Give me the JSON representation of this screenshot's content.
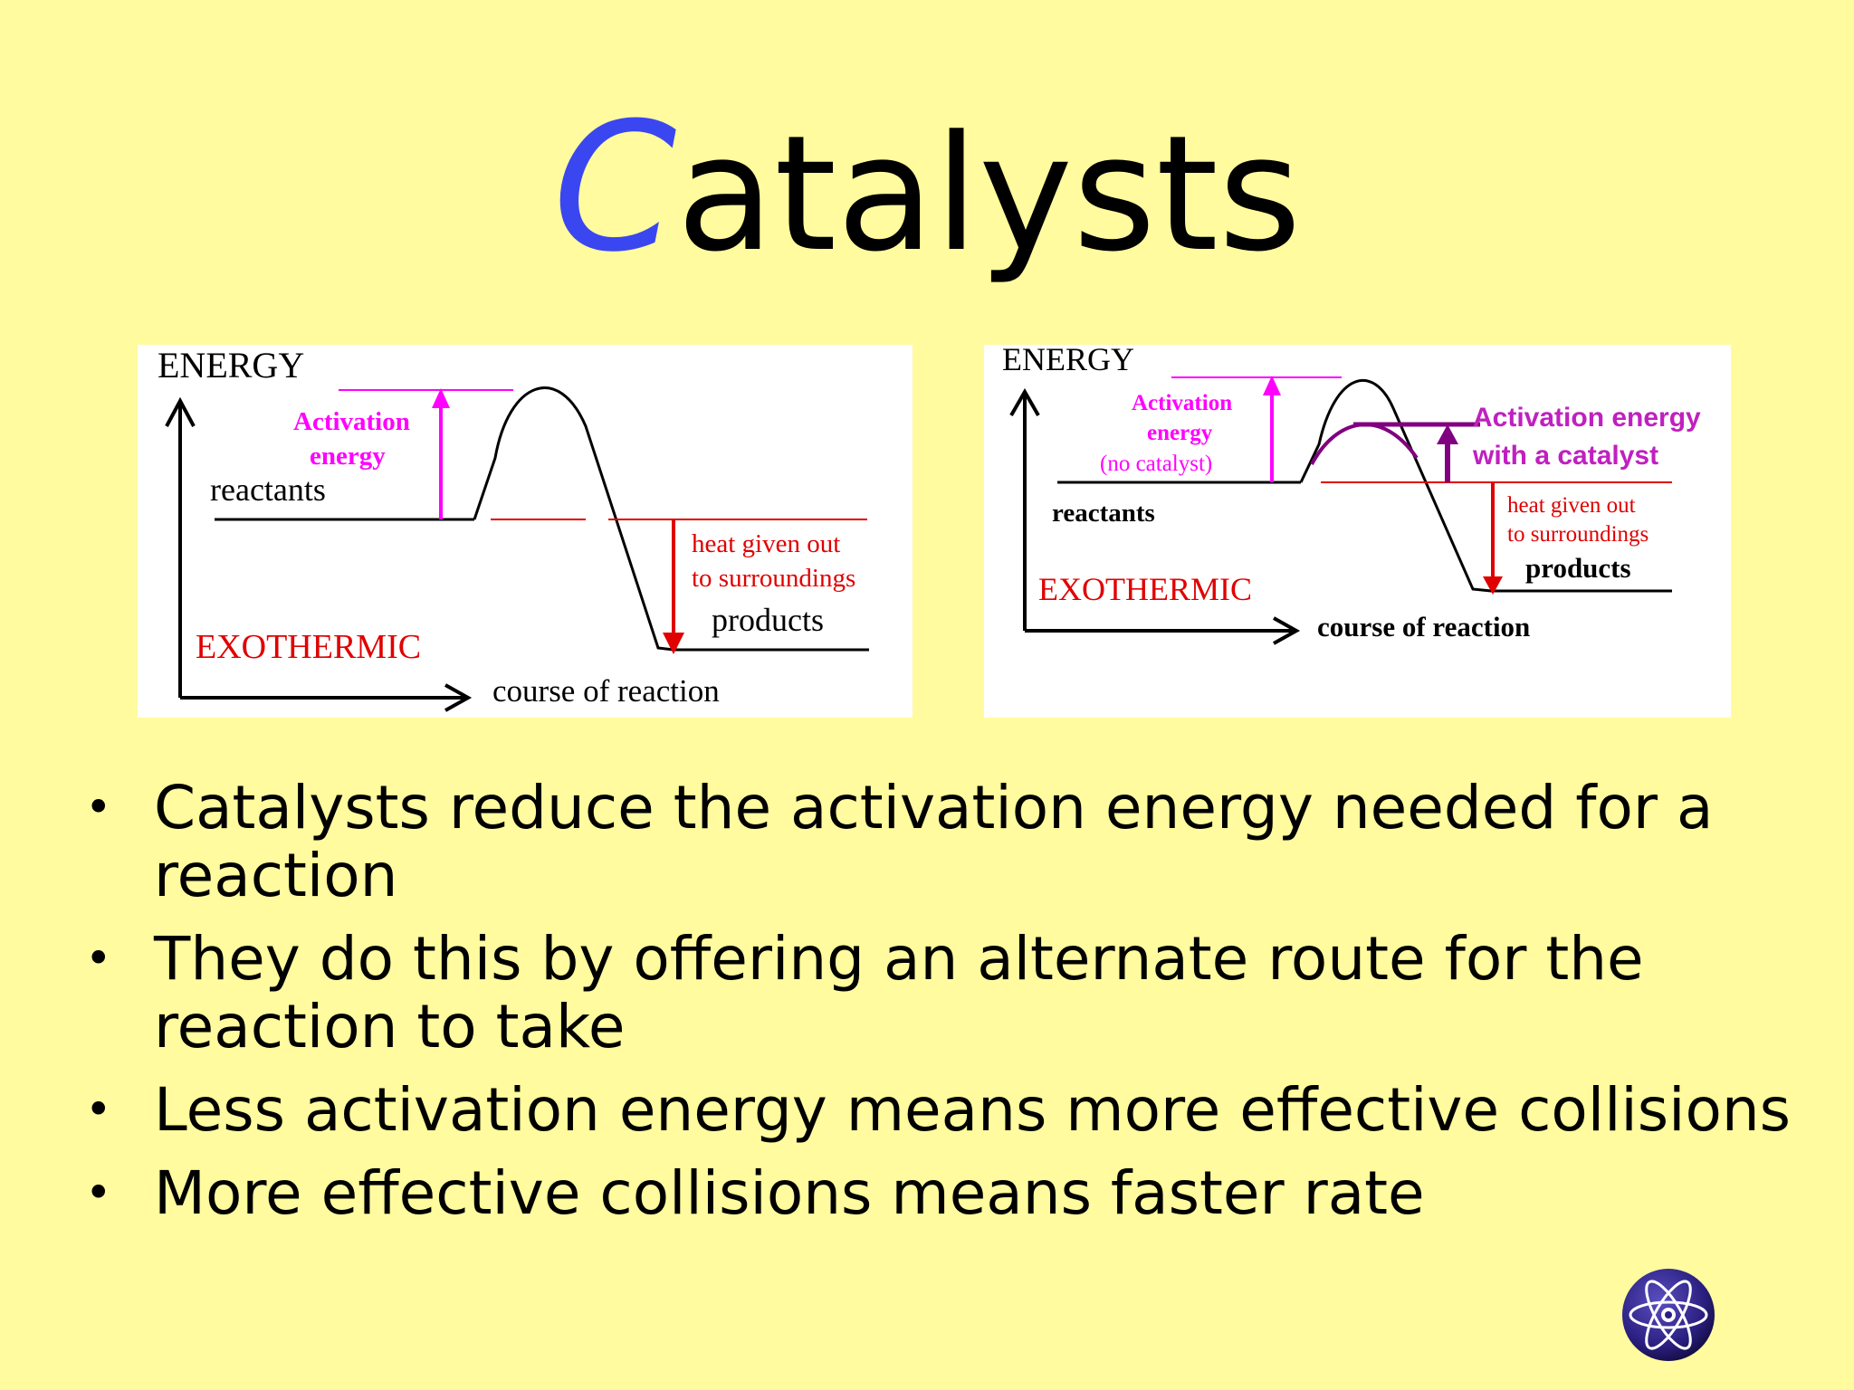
{
  "slide": {
    "title_first_letter": "C",
    "title_rest": "atalysts",
    "accent_color": "#3A47F0",
    "background_color": "#FFFB9E"
  },
  "diagram_left": {
    "y_axis_label": "ENERGY",
    "activation_label_line1": "Activation",
    "activation_label_line2": "energy",
    "reactants_label": "reactants",
    "heat_label_line1": "heat given out",
    "heat_label_line2": "to surroundings",
    "products_label": "products",
    "type_label": "EXOTHERMIC",
    "x_axis_label": "course of reaction"
  },
  "diagram_right": {
    "y_axis_label": "ENERGY",
    "activation_label_line1": "Activation",
    "activation_label_line2": "energy",
    "activation_label_line3": "(no catalyst)",
    "catalyst_label_line1": "Activation energy",
    "catalyst_label_line2": "with a catalyst",
    "reactants_label": "reactants",
    "heat_label_line1": "heat given out",
    "heat_label_line2": "to surroundings",
    "products_label": "products",
    "type_label": "EXOTHERMIC",
    "x_axis_label": "course of reaction"
  },
  "bullets": [
    {
      "text": "Catalysts reduce the activation energy needed for a reaction"
    },
    {
      "text": "They do this by offering an alternate route for the reaction to take"
    },
    {
      "text": "Less activation energy means more effective collisions"
    },
    {
      "text": "More effective collisions means faster rate"
    }
  ],
  "logo": {
    "icon": "atom-icon"
  },
  "colors": {
    "activation": "#FF00FF",
    "catalyst": "#800080",
    "heat": "#E00000",
    "exothermic": "#E00000"
  }
}
